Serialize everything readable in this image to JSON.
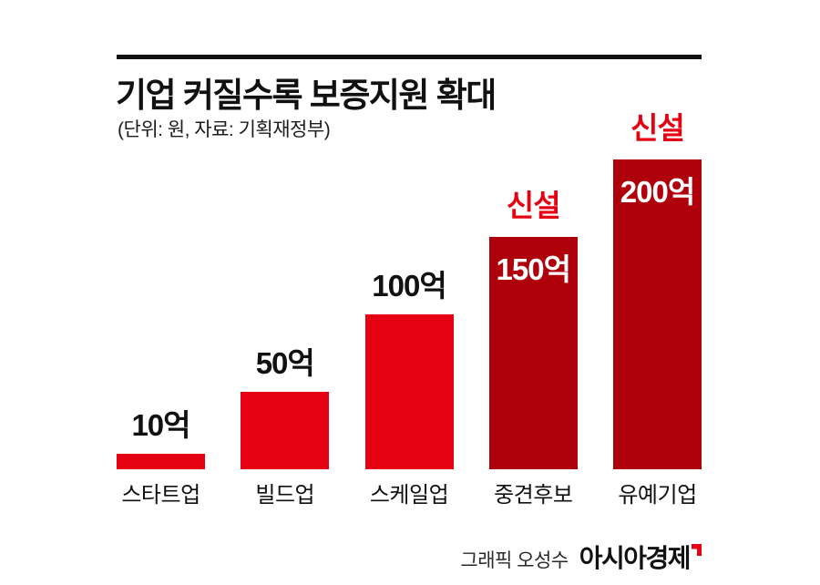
{
  "header": {
    "title": "기업 커질수록 보증지원 확대",
    "subtitle": "(단위: 원, 자료: 기획재정부)"
  },
  "chart_data": {
    "type": "bar",
    "title": "기업 커질수록 보증지원 확대",
    "unit_note": "단위: 원",
    "source": "기획재정부",
    "categories": [
      "스타트업",
      "빌드업",
      "스케일업",
      "중견후보",
      "유예기업"
    ],
    "values": [
      10,
      50,
      100,
      150,
      200
    ],
    "value_labels": [
      "10억",
      "50억",
      "100억",
      "150억",
      "200억"
    ],
    "annotations": [
      "",
      "",
      "",
      "신설",
      "신설"
    ],
    "value_label_inside": [
      false,
      false,
      false,
      true,
      true
    ],
    "bar_colors": [
      "#e60112",
      "#e60112",
      "#e60112",
      "#af010c",
      "#af010c"
    ],
    "ylim": [
      0,
      200
    ],
    "grid": false,
    "legend": "none"
  },
  "footer": {
    "credit": "그래픽 오성수",
    "brand": "아시아경제"
  },
  "colors": {
    "bright_red": "#e60112",
    "dark_red": "#af010c",
    "annotation_red": "#e60112",
    "text": "#111111",
    "background": "#ffffff"
  }
}
